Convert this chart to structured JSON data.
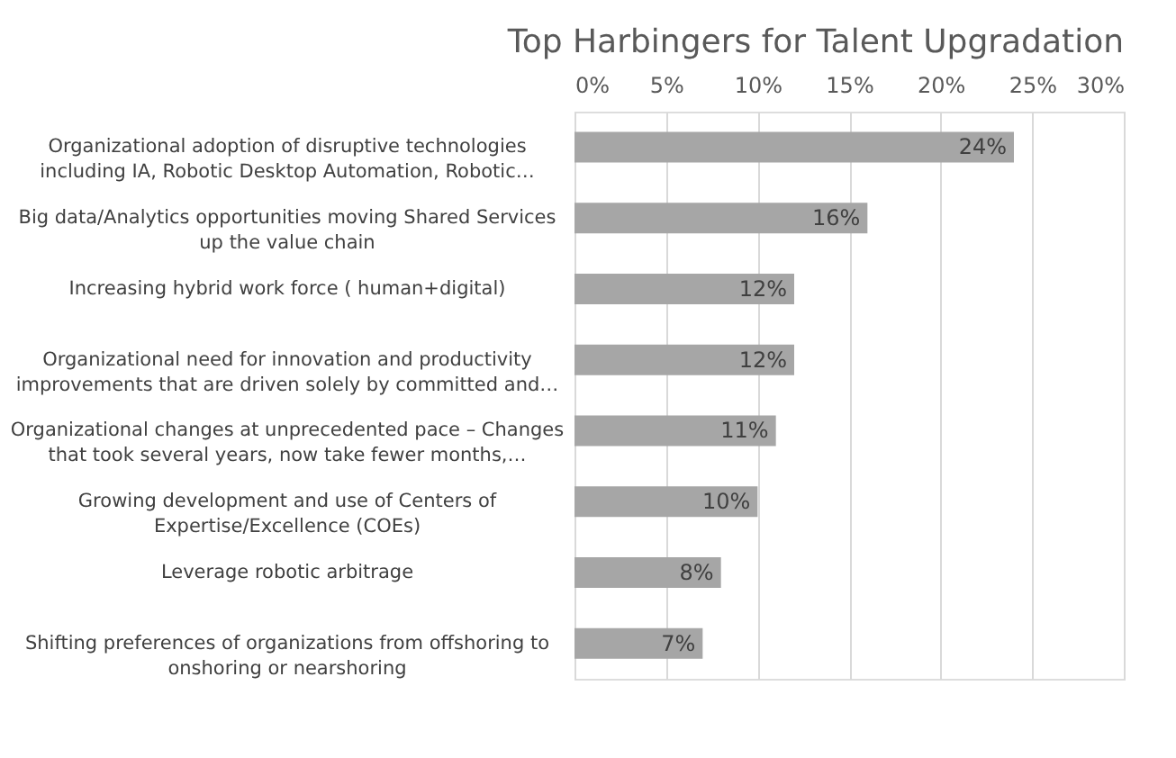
{
  "chart_data": {
    "type": "bar",
    "orientation": "horizontal",
    "title": "Top Harbingers for Talent Upgradation",
    "categories": [
      "Organizational adoption of disruptive technologies including IA, Robotic Desktop Automation, Robotic…",
      "Big data/Analytics opportunities moving Shared Services up the value chain",
      "Increasing hybrid work force ( human+digital)",
      "Organizational need for innovation and productivity improvements that are driven solely by committed and…",
      "Organizational changes at unprecedented pace – Changes that took several years, now take fewer months,…",
      "Growing development and use of Centers of Expertise/Excellence (COEs)",
      "Leverage robotic arbitrage",
      "Shifting preferences of organizations from offshoring to onshoring or nearshoring"
    ],
    "values": [
      24,
      16,
      12,
      12,
      11,
      10,
      8,
      7
    ],
    "value_labels": [
      "24%",
      "16%",
      "12%",
      "12%",
      "11%",
      "10%",
      "8%",
      "7%"
    ],
    "color": "#a6a6a6",
    "xlim": [
      0,
      30
    ],
    "xticks": [
      {
        "value": 0,
        "label": "0%"
      },
      {
        "value": 5,
        "label": "5%"
      },
      {
        "value": 10,
        "label": "10%"
      },
      {
        "value": 15,
        "label": "15%"
      },
      {
        "value": 20,
        "label": "20%"
      },
      {
        "value": 25,
        "label": "25%"
      },
      {
        "value": 30,
        "label": "30%"
      }
    ],
    "grid": "x"
  }
}
